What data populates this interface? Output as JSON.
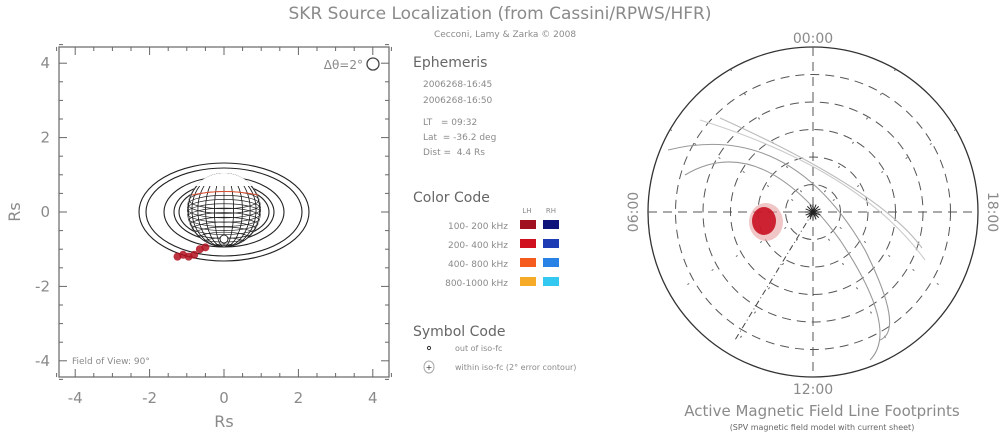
{
  "header": {
    "title": "SKR Source Localization (from Cassini/RPWS/HFR)",
    "credit": "Cecconi, Lamy & Zarka © 2008"
  },
  "left_panel": {
    "resolution_label": "Δθ=2°",
    "fov_label": "Field of View: 90°"
  },
  "ephemeris": {
    "heading": "Ephemeris",
    "time_start": "2006268-16:45",
    "time_end": "2006268-16:50",
    "lt": "LT   = 09:32",
    "lat": "Lat  = -36.2 deg",
    "dist": "Dist =  4.4 Rs"
  },
  "color_code": {
    "heading": "Color Code",
    "col_lh": "LH",
    "col_rh": "RH",
    "rows": [
      {
        "label": "100- 200 kHz",
        "lh": "#a0101e",
        "rh": "#0f147a"
      },
      {
        "label": "200- 400 kHz",
        "lh": "#d0101e",
        "rh": "#1e3cb4"
      },
      {
        "label": "400- 800 kHz",
        "lh": "#f55a1e",
        "rh": "#2882e6"
      },
      {
        "label": "800-1000 kHz",
        "lh": "#f5aa28",
        "rh": "#32c8f0"
      }
    ]
  },
  "symbol_code": {
    "heading": "Symbol Code",
    "items": [
      "out of iso-fc",
      "within iso-fc (2° error contour)"
    ]
  },
  "right_panel": {
    "title": "Active Magnetic Field Line Footprints",
    "subtitle": "(SPV magnetic field model with current sheet)",
    "lt_labels": {
      "top": "00:00",
      "bottom": "12:00",
      "left": "06:00",
      "right": "18:00"
    }
  },
  "chart_data": [
    {
      "type": "scatter",
      "title": "",
      "xlabel": "Rs",
      "ylabel": "Rs",
      "xlim": [
        -4.5,
        4.5
      ],
      "ylim": [
        -4.5,
        4.5
      ],
      "xticks": [
        "-4",
        "-2",
        "0",
        "2",
        "4"
      ],
      "yticks": [
        "4",
        "2",
        "0",
        "-2",
        "-4"
      ],
      "sources": [
        {
          "x": -1.25,
          "y": -1.2
        },
        {
          "x": -1.1,
          "y": -1.15
        },
        {
          "x": -0.95,
          "y": -1.2
        },
        {
          "x": -0.8,
          "y": -1.15
        },
        {
          "x": -0.65,
          "y": -1.0
        },
        {
          "x": -0.5,
          "y": -0.95
        }
      ],
      "source_color": "#b0101e"
    },
    {
      "type": "scatter",
      "projection": "polar",
      "footprint_color": "#c81020"
    }
  ]
}
